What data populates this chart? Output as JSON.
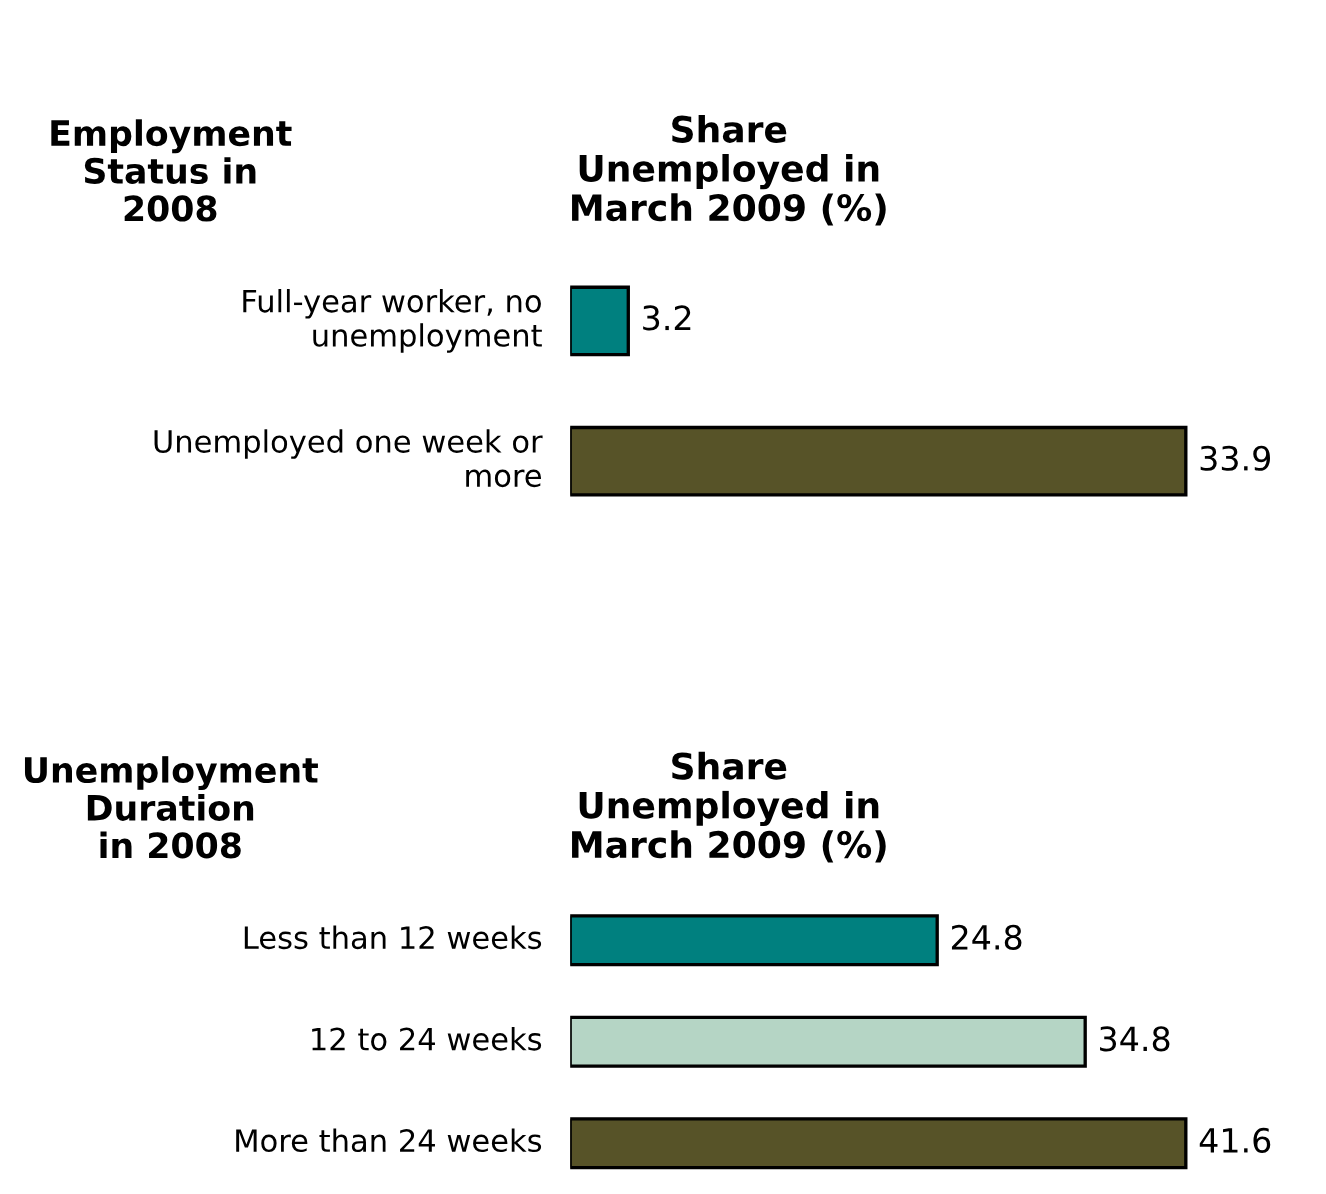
{
  "chart_data": [
    {
      "type": "bar",
      "orientation": "horizontal",
      "ylabel": "Employment\nStatus in\n2008",
      "xlabel": "Share\nUnemployed in\nMarch 2009 (%)",
      "categories": [
        "Full-year worker, no\nunemployment",
        "Unemployed one week or\nmore"
      ],
      "values": [
        3.2,
        33.9
      ],
      "colors": [
        "#00807f",
        "#575328"
      ],
      "data_labels": true
    },
    {
      "type": "bar",
      "orientation": "horizontal",
      "ylabel": "Unemployment\nDuration\nin 2008",
      "xlabel": "Share\nUnemployed in\nMarch 2009 (%)",
      "categories": [
        "Less than 12 weeks",
        "12 to 24 weeks",
        "More than 24 weeks"
      ],
      "values": [
        24.8,
        34.8,
        41.6
      ],
      "colors": [
        "#00807f",
        "#b5d5c5",
        "#575328"
      ],
      "data_labels": true
    }
  ]
}
